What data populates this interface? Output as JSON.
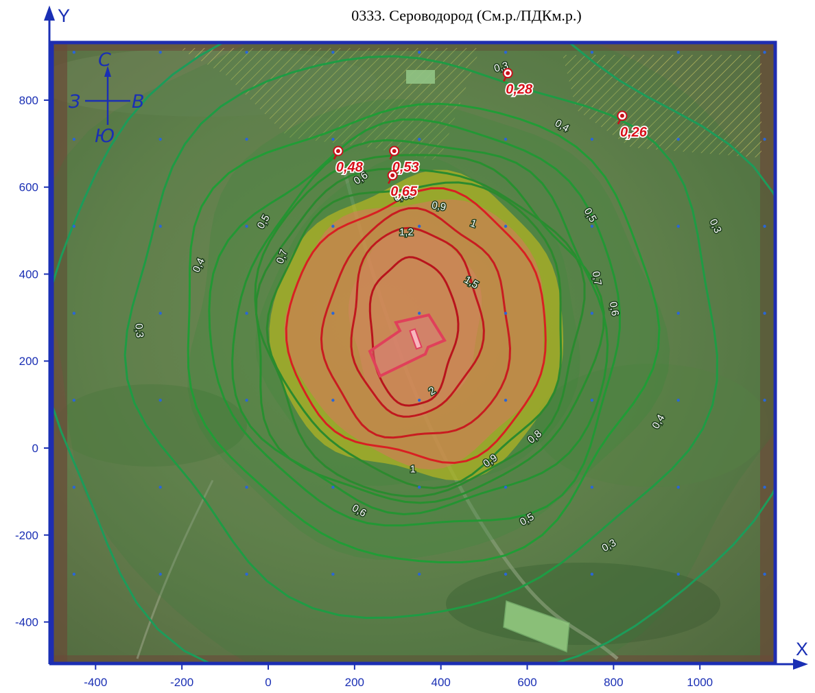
{
  "title": "0333. Сероводород (См.р./ПДКм.р.)",
  "axes": {
    "x_letter": "X",
    "y_letter": "Y",
    "x_ticks": [
      -400,
      -200,
      0,
      200,
      400,
      600,
      800,
      1000
    ],
    "y_ticks": [
      800,
      600,
      400,
      200,
      0,
      -200,
      -400
    ],
    "x_range": [
      -470,
      1145
    ],
    "y_range": [
      -495,
      930
    ]
  },
  "compass": {
    "north": "С",
    "south": "Ю",
    "west": "З",
    "east": "В"
  },
  "source_center": [
    345,
    270
  ],
  "isolines": [
    {
      "value": "2",
      "label": "2",
      "color": "#b8141c",
      "rx": 100,
      "ry": 170,
      "cx": 335,
      "cy": 270
    },
    {
      "value": "1,5",
      "label": "1,5",
      "color": "#c0181e",
      "rx": 150,
      "ry": 215,
      "cx": 340,
      "cy": 290
    },
    {
      "value": "1,2",
      "label": "1,2",
      "color": "#c81c20",
      "rx": 215,
      "ry": 260,
      "cx": 345,
      "cy": 275
    },
    {
      "value": "1",
      "label": "1",
      "color": "#d82022",
      "rx": 300,
      "ry": 305,
      "cx": 350,
      "cy": 275
    },
    {
      "value": "0,9",
      "label": "0,9",
      "color": "#2c8a2e",
      "rx": 340,
      "ry": 345,
      "cx": 352,
      "cy": 275
    },
    {
      "value": "0,8",
      "label": "0,8",
      "color": "#2a8b2f",
      "rx": 370,
      "ry": 375,
      "cx": 352,
      "cy": 275
    },
    {
      "value": "0,7",
      "label": "0,7",
      "color": "#27902f",
      "rx": 400,
      "ry": 400,
      "cx": 352,
      "cy": 275
    },
    {
      "value": "0,65",
      "label": "0,65",
      "color": "#249432",
      "rx": 430,
      "ry": 425,
      "cx": 352,
      "cy": 275
    },
    {
      "value": "0,6",
      "label": "0,6",
      "color": "#229834",
      "rx": 475,
      "ry": 465,
      "cx": 352,
      "cy": 275
    },
    {
      "value": "0,5",
      "label": "0,5",
      "color": "#209d36",
      "rx": 545,
      "ry": 525,
      "cx": 350,
      "cy": 275
    },
    {
      "value": "0,4",
      "label": "0,4",
      "color": "#1e9c44",
      "rx": 680,
      "ry": 640,
      "cx": 350,
      "cy": 270
    },
    {
      "value": "0,3",
      "label": "0,3",
      "color": "#1c9c5a",
      "rx": 880,
      "ry": 800,
      "cx": 350,
      "cy": 240
    }
  ],
  "isoline_labels": [
    {
      "text": "0,3",
      "x": 540,
      "y": 875,
      "rot": -15
    },
    {
      "text": "0,3",
      "x": -300,
      "y": 270,
      "rot": 85
    },
    {
      "text": "0,3",
      "x": 1035,
      "y": 510,
      "rot": 65
    },
    {
      "text": "0,3",
      "x": 790,
      "y": -225,
      "rot": -30
    },
    {
      "text": "0,4",
      "x": 680,
      "y": 740,
      "rot": 30
    },
    {
      "text": "0,4",
      "x": -160,
      "y": 420,
      "rot": -65
    },
    {
      "text": "0,4",
      "x": 905,
      "y": 60,
      "rot": -60
    },
    {
      "text": "0,5",
      "x": -10,
      "y": 520,
      "rot": -60
    },
    {
      "text": "0,5",
      "x": 745,
      "y": 535,
      "rot": 60
    },
    {
      "text": "0,5",
      "x": 600,
      "y": -165,
      "rot": -30
    },
    {
      "text": "0,6",
      "x": 215,
      "y": 620,
      "rot": -35
    },
    {
      "text": "0,6",
      "x": 800,
      "y": 320,
      "rot": 80
    },
    {
      "text": "0,6",
      "x": 210,
      "y": -145,
      "rot": 30
    },
    {
      "text": "0,65",
      "x": 315,
      "y": 578,
      "rot": -10
    },
    {
      "text": "0,7",
      "x": 33,
      "y": 440,
      "rot": -70
    },
    {
      "text": "0,7",
      "x": 760,
      "y": 390,
      "rot": 80
    },
    {
      "text": "0,8",
      "x": 618,
      "y": 25,
      "rot": -40
    },
    {
      "text": "0,9",
      "x": 395,
      "y": 555,
      "rot": 10
    },
    {
      "text": "0,9",
      "x": 515,
      "y": -30,
      "rot": -35
    },
    {
      "text": "1",
      "x": 475,
      "y": 515,
      "rot": 20
    },
    {
      "text": "1",
      "x": 335,
      "y": -50,
      "rot": 0
    },
    {
      "text": "1,2",
      "x": 320,
      "y": 495,
      "rot": 0
    },
    {
      "text": "1,5",
      "x": 470,
      "y": 380,
      "rot": 30
    },
    {
      "text": "2",
      "x": 380,
      "y": 130,
      "rot": -30
    }
  ],
  "receptors": [
    {
      "label": "0,28",
      "x": 555,
      "y": 862
    },
    {
      "label": "0,26",
      "x": 820,
      "y": 764
    },
    {
      "label": "0,48",
      "x": 162,
      "y": 683
    },
    {
      "label": "0,53",
      "x": 292,
      "y": 683
    },
    {
      "label": "0,65",
      "x": 288,
      "y": 627
    }
  ],
  "colors": {
    "frame": "#1f2db0",
    "axis": "#1a2fb4",
    "satellite_base": "#5a7a48",
    "zone_low": "#2e7d32",
    "zone_yellow": "#d4c21a",
    "zone_red": "#e86a6a",
    "grid_dot": "#2a66d6"
  }
}
